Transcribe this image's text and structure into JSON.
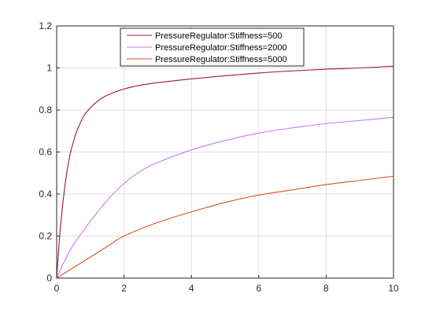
{
  "chart_data": {
    "type": "line",
    "title": "",
    "xlabel": "",
    "ylabel": "",
    "xlim": [
      0,
      10
    ],
    "ylim": [
      0,
      1.2
    ],
    "xticks": [
      0,
      2,
      4,
      6,
      8,
      10
    ],
    "yticks": [
      0,
      0.2,
      0.4,
      0.6,
      0.8,
      1,
      1.2
    ],
    "xtick_labels": [
      "0",
      "2",
      "4",
      "6",
      "8",
      "10"
    ],
    "ytick_labels": [
      "0",
      "0.2",
      "0.4",
      "0.6",
      "0.8",
      "1",
      "1.2"
    ],
    "grid": true,
    "legend_position": "top-center",
    "series": [
      {
        "name": "PressureRegulator:Stiffness=500",
        "color": "#a2142f",
        "x": [
          0,
          0.1,
          0.2,
          0.3,
          0.4,
          0.5,
          0.6,
          0.8,
          1,
          1.2,
          1.5,
          2,
          2.5,
          3,
          4,
          5,
          6,
          7,
          8,
          9,
          10
        ],
        "y": [
          0,
          0.22,
          0.38,
          0.5,
          0.59,
          0.65,
          0.7,
          0.77,
          0.81,
          0.84,
          0.87,
          0.9,
          0.918,
          0.93,
          0.948,
          0.963,
          0.976,
          0.986,
          0.994,
          1.0,
          1.008
        ]
      },
      {
        "name": "PressureRegulator:Stiffness=2000",
        "color": "#c678f0",
        "x": [
          0,
          0.2,
          0.5,
          1,
          1.5,
          2,
          2.5,
          3,
          4,
          5,
          6,
          7,
          8,
          9,
          10
        ],
        "y": [
          0,
          0.07,
          0.16,
          0.27,
          0.37,
          0.45,
          0.51,
          0.55,
          0.61,
          0.655,
          0.69,
          0.715,
          0.735,
          0.75,
          0.765
        ]
      },
      {
        "name": "PressureRegulator:Stiffness=5000",
        "color": "#d95319",
        "x": [
          0,
          0.5,
          1,
          1.5,
          2,
          3,
          4,
          5,
          6,
          7,
          8,
          9,
          10
        ],
        "y": [
          0,
          0.05,
          0.1,
          0.15,
          0.2,
          0.265,
          0.315,
          0.36,
          0.395,
          0.42,
          0.445,
          0.465,
          0.485
        ]
      }
    ]
  }
}
